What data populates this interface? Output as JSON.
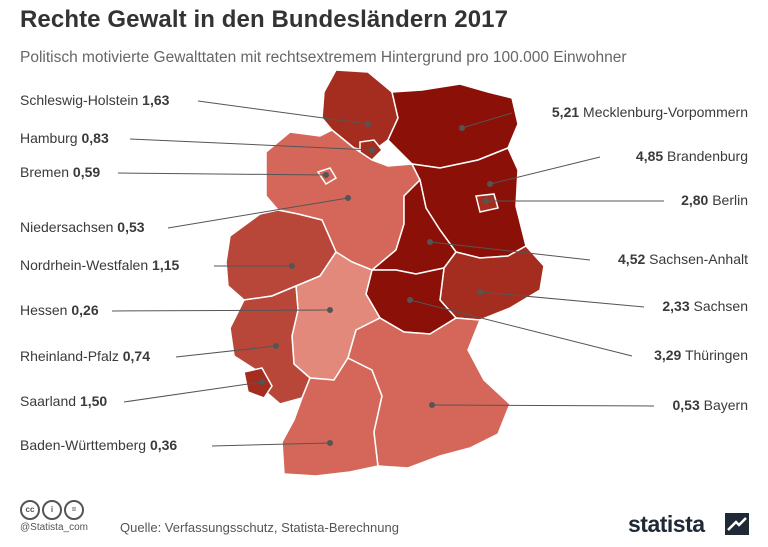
{
  "title": "Rechte Gewalt in den Bundesländern 2017",
  "subtitle": "Politisch motivierte Gewalttaten mit rechtsextremem Hintergrund pro 100.000 Einwohner",
  "left_labels": [
    {
      "name": "Schleswig-Holstein",
      "value": "1,63"
    },
    {
      "name": "Hamburg",
      "value": "0,83"
    },
    {
      "name": "Bremen",
      "value": "0,59"
    },
    {
      "name": "Niedersachsen",
      "value": "0,53"
    },
    {
      "name": "Nordrhein-Westfalen",
      "value": "1,15"
    },
    {
      "name": "Hessen",
      "value": "0,26"
    },
    {
      "name": "Rheinland-Pfalz",
      "value": "0,74"
    },
    {
      "name": "Saarland",
      "value": "1,50"
    },
    {
      "name": "Baden-Württemberg",
      "value": "0,36"
    }
  ],
  "right_labels": [
    {
      "name": "Mecklenburg-Vorpommern",
      "value": "5,21"
    },
    {
      "name": "Brandenburg",
      "value": "4,85"
    },
    {
      "name": "Berlin",
      "value": "2,80"
    },
    {
      "name": "Sachsen-Anhalt",
      "value": "4,52"
    },
    {
      "name": "Sachsen",
      "value": "2,33"
    },
    {
      "name": "Thüringen",
      "value": "3,29"
    },
    {
      "name": "Bayern",
      "value": "0,53"
    }
  ],
  "colors": {
    "darkest": "#8b1108",
    "dark": "#a52d1f",
    "medium": "#b8473a",
    "light": "#d4675a",
    "lightest": "#e3897c"
  },
  "footer": {
    "handle": "@Statista_com",
    "source": "Quelle: Verfassungsschutz, Statista-Berechnung",
    "brand": "statista",
    "cc_icons": [
      "cc",
      "i",
      "="
    ]
  }
}
